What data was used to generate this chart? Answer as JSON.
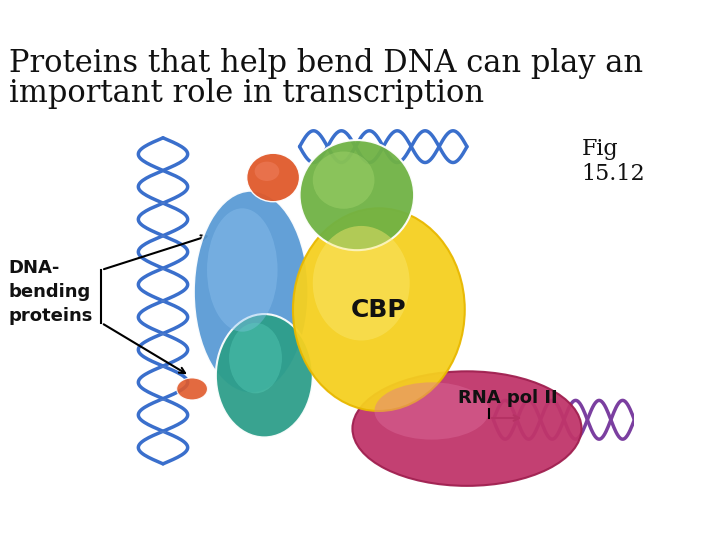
{
  "title_line1": "Proteins that help bend DNA can play an",
  "title_line2": "important role in transcription",
  "fig_label": "Fig\n15.12",
  "title_fontsize": 22,
  "fig_label_fontsize": 16,
  "bg_color": "#ffffff",
  "label_dna_bending": "DNA-\nbending\nproteins",
  "label_cbp": "CBP",
  "label_rna_pol": "RNA pol II",
  "colors": {
    "blue_oval": "#5b9bd5",
    "green_circle": "#70b244",
    "red_small": "#e05a2b",
    "teal_oval": "#2e9e8a",
    "yellow_oval": "#f5d020",
    "magenta_blob": "#c0356a",
    "dna_blue": "#3a6fcc",
    "dna_purple": "#7b3fa0"
  }
}
